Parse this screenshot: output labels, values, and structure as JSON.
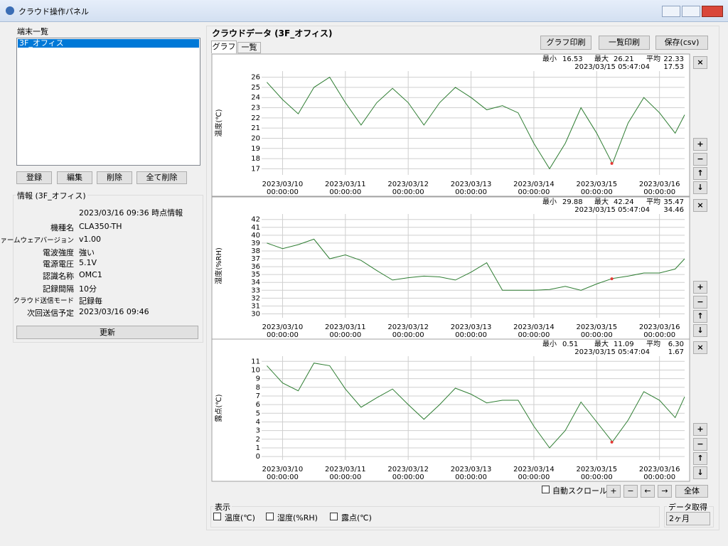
{
  "window": {
    "title": "クラウド操作パネル"
  },
  "device_list": {
    "label": "端末一覧",
    "items": [
      "3F_オフィス"
    ]
  },
  "device_buttons": [
    "登録",
    "編集",
    "削除",
    "全て削除"
  ],
  "info": {
    "label": "情報 (3F_オフィス)",
    "timestamp": "2023/03/16 09:36 時点情報",
    "rows": [
      [
        "機種名",
        "CLA350-TH"
      ],
      [
        "ファームウェアバージョン",
        "v1.00"
      ],
      [
        "電波強度",
        "強い"
      ],
      [
        "電源電圧",
        "5.1V"
      ],
      [
        "認識名称",
        "OMC1"
      ],
      [
        "記録間隔",
        "10分"
      ],
      [
        "クラウド送信モード",
        "記録毎"
      ],
      [
        "次回送信予定",
        "2023/03/16 09:46"
      ]
    ],
    "update": "更新"
  },
  "data_panel": {
    "title": "クラウドデータ (3F_オフィス)",
    "tabs": [
      "グラフ",
      "一覧"
    ],
    "buttons": [
      "グラフ印刷",
      "一覧印刷",
      "保存(csv)"
    ]
  },
  "graphs": {
    "stat_labels": [
      "最小",
      "最大",
      "平均"
    ],
    "pane_buttons": [
      "×",
      "+",
      "−",
      "↑",
      "↓"
    ],
    "xlim": [
      "2023/03/09 16:00:00",
      "2023/03/16 09:36:00"
    ],
    "xticks": [
      {
        "date": "2023/03/10",
        "time": "00:00:00"
      },
      {
        "date": "2023/03/11",
        "time": "00:00:00"
      },
      {
        "date": "2023/03/12",
        "time": "00:00:00"
      },
      {
        "date": "2023/03/13",
        "time": "00:00:00"
      },
      {
        "date": "2023/03/14",
        "time": "00:00:00"
      },
      {
        "date": "2023/03/15",
        "time": "00:00:00"
      },
      {
        "date": "2023/03/16",
        "time": "00:00:00"
      }
    ],
    "grid": true,
    "x": [
      "2023/03/09 18:00:00",
      "2023/03/10 00:00:00",
      "2023/03/10 06:00:00",
      "2023/03/10 12:00:00",
      "2023/03/10 18:00:00",
      "2023/03/11 00:00:00",
      "2023/03/11 06:00:00",
      "2023/03/11 12:00:00",
      "2023/03/11 18:00:00",
      "2023/03/12 00:00:00",
      "2023/03/12 06:00:00",
      "2023/03/12 12:00:00",
      "2023/03/12 18:00:00",
      "2023/03/13 00:00:00",
      "2023/03/13 06:00:00",
      "2023/03/13 12:00:00",
      "2023/03/13 18:00:00",
      "2023/03/14 00:00:00",
      "2023/03/14 06:00:00",
      "2023/03/14 12:00:00",
      "2023/03/14 18:00:00",
      "2023/03/15 00:00:00",
      "2023/03/15 06:00:00",
      "2023/03/15 12:00:00",
      "2023/03/15 18:00:00",
      "2023/03/16 00:00:00",
      "2023/03/16 06:00:00",
      "2023/03/16 09:36:00"
    ],
    "charts": [
      {
        "type": "line",
        "y_label": "温度(℃)",
        "color": "#2e7d32",
        "cursor_color": "#e53935",
        "stats": [
          16.53,
          26.21,
          22.33
        ],
        "cursor_time": "2023/03/15 05:47:04",
        "cursor_value": 17.53,
        "ylim": [
          16.4,
          26.6
        ],
        "yticks": [
          17,
          18,
          19,
          20,
          21,
          22,
          23,
          24,
          25,
          26
        ],
        "values": [
          25.5,
          23.8,
          22.4,
          25.0,
          26.0,
          23.5,
          21.3,
          23.5,
          24.9,
          23.5,
          21.3,
          23.5,
          25.0,
          24.0,
          22.8,
          23.2,
          22.5,
          19.5,
          17.0,
          19.5,
          23.0,
          20.5,
          17.5,
          21.5,
          24.0,
          22.5,
          20.5,
          22.3
        ]
      },
      {
        "type": "line",
        "y_label": "湿度(%RH)",
        "color": "#2e7d32",
        "cursor_color": "#e53935",
        "stats": [
          29.88,
          42.24,
          35.47
        ],
        "cursor_time": "2023/03/15 05:47:04",
        "cursor_value": 34.46,
        "ylim": [
          29.5,
          42.7
        ],
        "yticks": [
          30,
          31,
          32,
          33,
          34,
          35,
          36,
          37,
          38,
          39,
          40,
          41,
          42
        ],
        "values": [
          39.0,
          38.3,
          38.8,
          39.5,
          37.0,
          37.5,
          36.8,
          35.5,
          34.3,
          34.6,
          34.8,
          34.7,
          34.3,
          35.3,
          36.5,
          33.0,
          33.0,
          33.0,
          33.1,
          33.5,
          33.0,
          33.8,
          34.5,
          34.8,
          35.2,
          35.2,
          35.7,
          37.0
        ]
      },
      {
        "type": "line",
        "y_label": "露点(℃)",
        "color": "#2e7d32",
        "cursor_color": "#e53935",
        "stats": [
          0.51,
          11.09,
          6.3
        ],
        "stat_labels_printed": [
          "0.51",
          "11.09",
          "6.30"
        ],
        "cursor_time": "2023/03/15 05:47:04",
        "cursor_value": 1.67,
        "ylim": [
          -0.4,
          11.6
        ],
        "yticks": [
          0,
          1,
          2,
          3,
          4,
          5,
          6,
          7,
          8,
          9,
          10,
          11
        ],
        "values": [
          10.5,
          8.5,
          7.6,
          10.8,
          10.5,
          7.8,
          5.7,
          6.8,
          7.8,
          6.0,
          4.3,
          6.0,
          7.9,
          7.2,
          6.2,
          6.5,
          6.5,
          3.5,
          1.0,
          3.0,
          6.3,
          4.0,
          1.7,
          4.2,
          7.5,
          6.5,
          4.5,
          6.9
        ]
      }
    ]
  },
  "controls": {
    "auto_scroll": "自動スクロール",
    "nav": [
      "+",
      "−",
      "←",
      "→"
    ],
    "all": "全体"
  },
  "display": {
    "label": "表示",
    "options": [
      "温度(℃)",
      "湿度(%RH)",
      "露点(℃)"
    ]
  },
  "fetch": {
    "label": "データ取得",
    "selected": "2ヶ月"
  }
}
